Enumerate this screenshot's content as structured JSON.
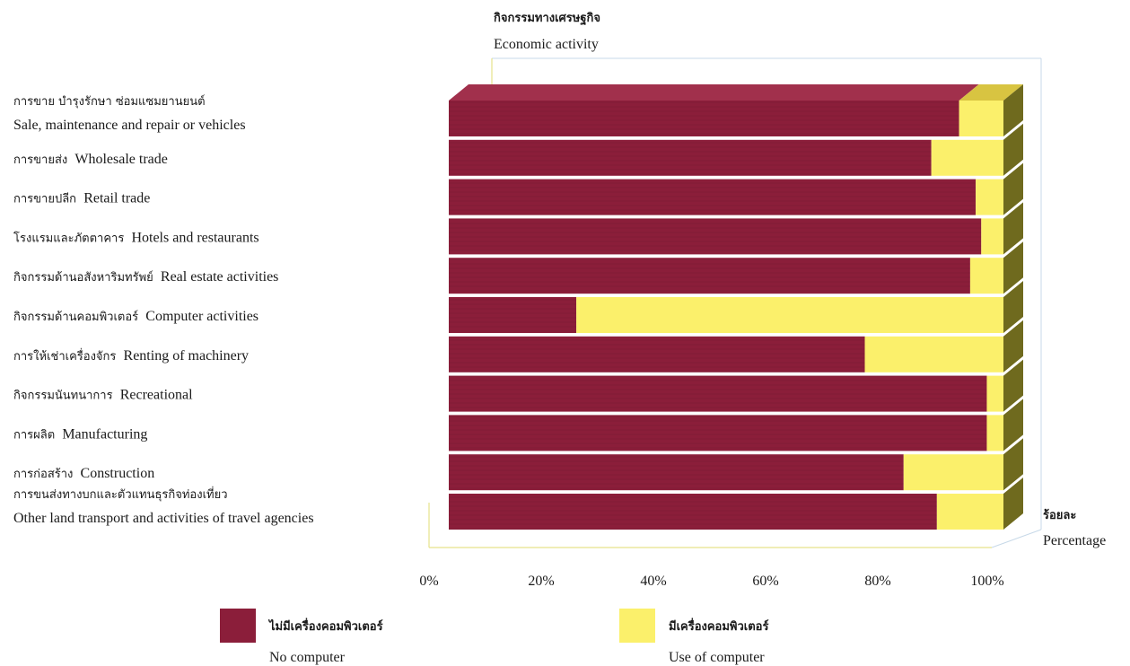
{
  "chart_data": {
    "type": "bar",
    "orientation": "horizontal",
    "stacked": "percent",
    "three_d": true,
    "title_th": "กิจกรรมทางเศรษฐกิจ",
    "title": "Economic activity",
    "xlabel_th": "ร้อยละ",
    "xlabel": "Percentage",
    "xlim": [
      0,
      100
    ],
    "xticks": [
      "0%",
      "20%",
      "40%",
      "60%",
      "80%",
      "100%"
    ],
    "grid": false,
    "legend_position": "bottom",
    "categories": [
      {
        "th": "การขาย บำรุงรักษา ซ่อมแซมยานยนต์",
        "en": "Sale, maintenance and repair or vehicles"
      },
      {
        "th": "การขายส่ง",
        "en": "Wholesale trade"
      },
      {
        "th": "การขายปลีก",
        "en": "Retail trade"
      },
      {
        "th": "โรงแรมและภัตตาคาร",
        "en": "Hotels and restaurants"
      },
      {
        "th": "กิจกรรมด้านอสังหาริมทรัพย์",
        "en": "Real estate activities"
      },
      {
        "th": "กิจกรรมด้านคอมพิวเตอร์",
        "en": "Computer activities"
      },
      {
        "th": "การให้เช่าเครื่องจักร",
        "en": "Renting of machinery"
      },
      {
        "th": "กิจกรรมนันทนาการ",
        "en": "Recreational"
      },
      {
        "th": "การผลิต",
        "en": "Manufacturing"
      },
      {
        "th": "การก่อสร้าง",
        "en": "Construction"
      },
      {
        "th": "การขนส่งทางบกและตัวแทนธุรกิจท่องเที่ยว",
        "en": "Other land transport and activities of travel agencies"
      }
    ],
    "series": [
      {
        "name_th": "ไม่มีเครื่องคอมพิวเตอร์",
        "name": "No computer",
        "color": "#8b1e3a",
        "values": [
          92,
          87,
          95,
          96,
          94,
          23,
          75,
          97,
          97,
          82,
          88
        ]
      },
      {
        "name_th": "มีเครื่องคอมพิวเตอร์",
        "name": "Use of computer",
        "color": "#fbf06b",
        "values": [
          8,
          13,
          5,
          4,
          6,
          77,
          25,
          3,
          3,
          18,
          12
        ]
      }
    ]
  }
}
